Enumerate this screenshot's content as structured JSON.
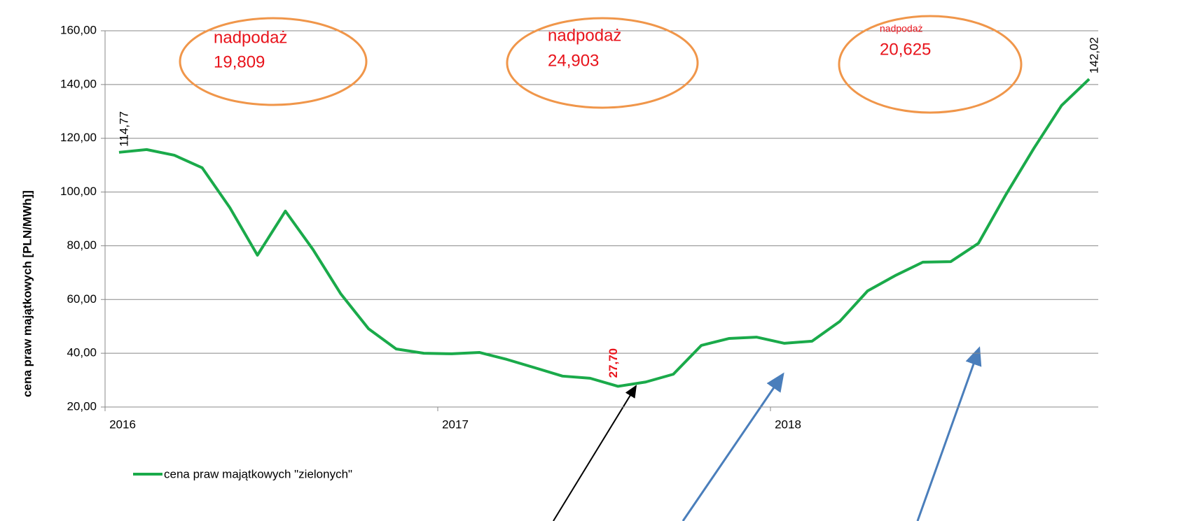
{
  "chart_data": {
    "type": "line",
    "y_axis_label": "cena praw majątkowych [PLN/MWh]]",
    "xlim": [
      2016,
      2019
    ],
    "xticks": [
      2016,
      2017,
      2018
    ],
    "ylim": [
      20,
      160
    ],
    "yticks": [
      {
        "value": 20,
        "label": "20,00"
      },
      {
        "value": 40,
        "label": "40,00"
      },
      {
        "value": 60,
        "label": "60,00"
      },
      {
        "value": 80,
        "label": "80,00"
      },
      {
        "value": 100,
        "label": "100,00"
      },
      {
        "value": 120,
        "label": "120,00"
      },
      {
        "value": 140,
        "label": "140,00"
      },
      {
        "value": 160,
        "label": "160,00"
      }
    ],
    "grid": true,
    "legend": "bottom-left",
    "x": [
      2016.042,
      2016.125,
      2016.208,
      2016.292,
      2016.375,
      2016.458,
      2016.542,
      2016.625,
      2016.708,
      2016.792,
      2016.875,
      2016.958,
      2017.042,
      2017.125,
      2017.208,
      2017.292,
      2017.375,
      2017.458,
      2017.542,
      2017.625,
      2017.708,
      2017.792,
      2017.875,
      2017.958,
      2018.042,
      2018.125,
      2018.208,
      2018.292,
      2018.375,
      2018.458,
      2018.542,
      2018.625,
      2018.708,
      2018.792,
      2018.875,
      2018.958
    ],
    "series": [
      {
        "name": "cena praw majątkowych \"zielonych\"",
        "color": "#1aaa4a",
        "values": [
          114.77,
          115.8,
          113.7,
          109.0,
          94.2,
          76.5,
          92.9,
          78.6,
          62.2,
          49.1,
          41.6,
          40.0,
          39.8,
          40.3,
          37.7,
          34.6,
          31.5,
          30.7,
          27.7,
          29.3,
          32.2,
          42.9,
          45.5,
          46.0,
          43.7,
          44.5,
          51.8,
          63.2,
          68.9,
          73.9,
          74.1,
          80.9,
          99.1,
          116.3,
          132.2,
          142.02
        ],
        "value_labels": [
          "114,77",
          null,
          null,
          null,
          null,
          null,
          null,
          null,
          null,
          null,
          null,
          null,
          null,
          null,
          null,
          null,
          null,
          null,
          "27,70",
          null,
          null,
          null,
          null,
          null,
          null,
          null,
          null,
          null,
          null,
          null,
          null,
          null,
          null,
          null,
          null,
          "142,02"
        ]
      }
    ],
    "annotations": [
      {
        "label": "nadpodaż",
        "value": "19,809"
      },
      {
        "label": "nadpodaż",
        "value": "24,903"
      },
      {
        "label": "nadpodaż",
        "value": "20,625"
      }
    ]
  }
}
